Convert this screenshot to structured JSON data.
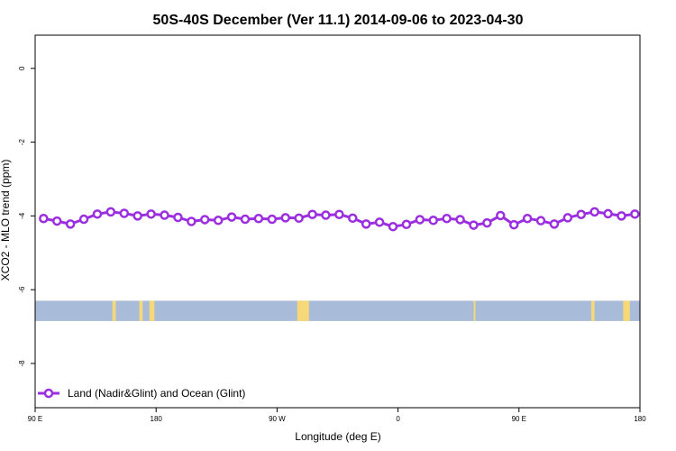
{
  "chart_data": {
    "type": "line",
    "title": "50S-40S December (Ver 11.1)   2014-09-06 to 2023-04-30",
    "xlabel": "Longitude (deg E)",
    "ylabel": "XCO2 - MLO trend (ppm)",
    "x_axis_note": "x values are longitude offsets from 90 E (0..360); 180..270 correspond to 90 W..0",
    "xlim": [
      0,
      360
    ],
    "ylim": [
      -9.2,
      0.9
    ],
    "x_ticks": [
      {
        "value": 0,
        "label": "90 E"
      },
      {
        "value": 72,
        "label": "180"
      },
      {
        "value": 144,
        "label": "90 W"
      },
      {
        "value": 216,
        "label": "0"
      },
      {
        "value": 288,
        "label": "90 E"
      },
      {
        "value": 360,
        "label": "180"
      }
    ],
    "y_ticks": [
      {
        "value": 0,
        "label": "0"
      },
      {
        "value": -2,
        "label": "-2"
      },
      {
        "value": -4,
        "label": "-4"
      },
      {
        "value": -6,
        "label": "-6"
      },
      {
        "value": -8,
        "label": "-8"
      }
    ],
    "series": [
      {
        "name": "Land (Nadir&Glint) and Ocean (Glint)",
        "color": "#9b2fe0",
        "x": [
          5,
          13,
          21,
          29,
          37,
          45,
          53,
          61,
          69,
          77,
          85,
          93,
          101,
          109,
          117,
          125,
          133,
          141,
          149,
          157,
          165,
          173,
          181,
          189,
          197,
          205,
          213,
          221,
          229,
          237,
          245,
          253,
          261,
          269,
          277,
          285,
          293,
          301,
          309,
          317,
          325,
          333,
          341,
          349,
          357
        ],
        "y": [
          -4.07,
          -4.14,
          -4.22,
          -4.09,
          -3.95,
          -3.89,
          -3.93,
          -4.0,
          -3.95,
          -3.98,
          -4.04,
          -4.15,
          -4.1,
          -4.12,
          -4.03,
          -4.09,
          -4.07,
          -4.09,
          -4.05,
          -4.06,
          -3.96,
          -3.98,
          -3.96,
          -4.06,
          -4.22,
          -4.17,
          -4.29,
          -4.23,
          -4.1,
          -4.12,
          -4.07,
          -4.1,
          -4.25,
          -4.19,
          -3.99,
          -4.24,
          -4.07,
          -4.13,
          -4.22,
          -4.05,
          -3.96,
          -3.89,
          -3.94,
          -4.0,
          -3.95
        ]
      }
    ],
    "land_ocean_band": {
      "y_range": [
        -6.85,
        -6.3
      ],
      "ocean_color": "#a8bcd9",
      "land_color": "#f6d878",
      "land_spans": [
        [
          46,
          48
        ],
        [
          62,
          64
        ],
        [
          68,
          71
        ],
        [
          156,
          163
        ],
        [
          261,
          262
        ],
        [
          331,
          333
        ],
        [
          350,
          354
        ]
      ]
    },
    "legend": {
      "position": "bottom-left"
    }
  }
}
